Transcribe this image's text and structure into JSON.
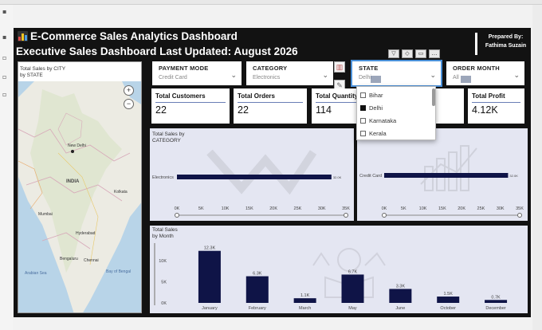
{
  "header": {
    "title": "E-Commerce Sales Analytics Dashboard",
    "subtitle": "Executive Sales Dashboard Last Updated: August 2026",
    "prepared_by_label": "Prepared By:",
    "prepared_by_name": "Fathima Suzain"
  },
  "map": {
    "title": "Total Sales by CITY",
    "subtitle": "by STATE",
    "labels": [
      "New Delhi",
      "INDIA",
      "Mumbai",
      "Bengaluru",
      "Chennai",
      "Hyderabad",
      "Kolkata",
      "Bay of Bengal",
      "Arabian Sea"
    ],
    "zoom_in": "+",
    "zoom_out": "−"
  },
  "slicers": {
    "payment_mode": {
      "label": "PAYMENT MODE",
      "value": "Credit Card"
    },
    "category": {
      "label": "CATEGORY",
      "value": "Electronics"
    },
    "state": {
      "label": "STATE",
      "value": "Delhi"
    },
    "order_month": {
      "label": "ORDER MONTH",
      "value": "All"
    }
  },
  "state_dropdown": {
    "options": [
      {
        "label": "Bihar",
        "checked": false
      },
      {
        "label": "Delhi",
        "checked": true
      },
      {
        "label": "Karnataka",
        "checked": false
      },
      {
        "label": "Kerala",
        "checked": false
      }
    ]
  },
  "kpis": {
    "total_customers": {
      "label": "Total Customers",
      "value": "22"
    },
    "total_orders": {
      "label": "Total Orders",
      "value": "22"
    },
    "total_quantity": {
      "label": "Total Quantity",
      "value": "114"
    },
    "total_profit": {
      "label": "Total Profit",
      "value": "4.12K"
    }
  },
  "colors": {
    "bar": "#0f1447",
    "panel": "#e4e6f2",
    "canvas": "#121212",
    "kpi_line": "#6a7fb6"
  },
  "icons": [
    "bar-chart-icon",
    "filter-icon",
    "more-icon",
    "focus-icon",
    "copy-icon",
    "zoom-in-icon",
    "zoom-out-icon",
    "location-icon"
  ],
  "chart_data": [
    {
      "type": "bar",
      "orientation": "horizontal",
      "title": "Total Sales by",
      "subtitle": "CATEGORY",
      "categories": [
        "Electronics"
      ],
      "values": [
        32000
      ],
      "data_labels": [
        "32.0K"
      ],
      "xlim": [
        0,
        35000
      ],
      "xticks": [
        "0K",
        "5K",
        "10K",
        "15K",
        "20K",
        "25K",
        "30K",
        "35K"
      ]
    },
    {
      "type": "bar",
      "orientation": "horizontal",
      "title": "",
      "categories": [
        "Credit Card"
      ],
      "values": [
        32000
      ],
      "data_labels": [
        "32.0K"
      ],
      "xlim": [
        0,
        35000
      ],
      "xticks": [
        "0K",
        "5K",
        "10K",
        "15K",
        "20K",
        "25K",
        "30K",
        "35K"
      ]
    },
    {
      "type": "bar",
      "title": "Total Sales",
      "subtitle": "by Month",
      "categories": [
        "January",
        "February",
        "March",
        "May",
        "June",
        "October",
        "December"
      ],
      "values": [
        12300,
        6300,
        1100,
        6700,
        3300,
        1500,
        700
      ],
      "data_labels": [
        "12.3K",
        "6.3K",
        "1.1K",
        "6.7K",
        "3.3K",
        "1.5K",
        "0.7K"
      ],
      "ylim": [
        0,
        13000
      ],
      "yticks": [
        {
          "v": 10000,
          "label": "10K"
        },
        {
          "v": 5000,
          "label": "5K"
        },
        {
          "v": 0,
          "label": "0K"
        }
      ]
    }
  ]
}
